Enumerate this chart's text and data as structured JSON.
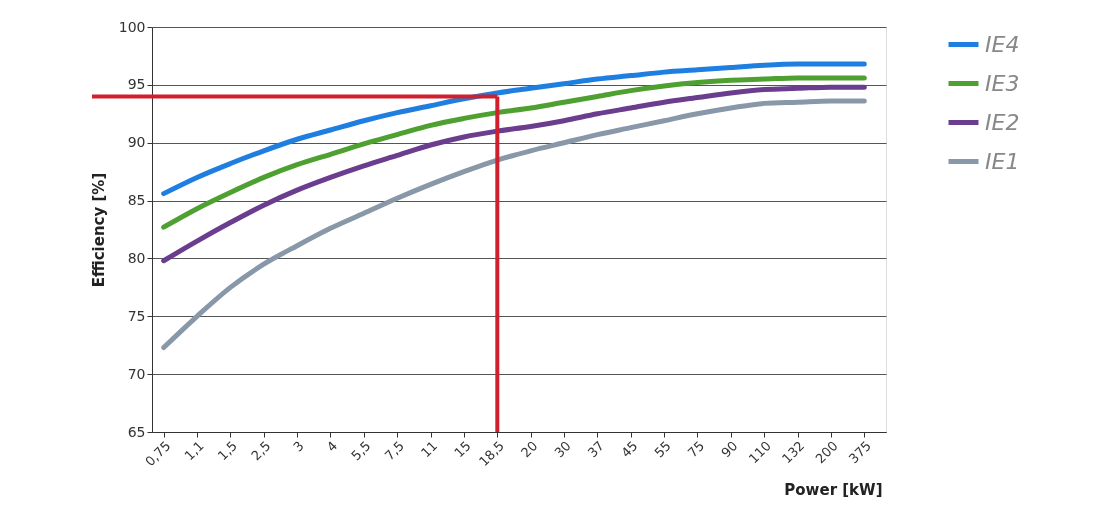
{
  "chart_data": {
    "type": "line",
    "xlabel": "Power  [kW]",
    "ylabel": "Efficiency  [%]",
    "categories": [
      "0,75",
      "1,1",
      "1,5",
      "2,5",
      "3",
      "4",
      "5,5",
      "7,5",
      "11",
      "15",
      "18,5",
      "20",
      "30",
      "37",
      "45",
      "55",
      "75",
      "90",
      "110",
      "132",
      "200",
      "375"
    ],
    "series": [
      {
        "name": "IE4",
        "color": "#1f7fe0",
        "values": [
          85.6,
          87.0,
          88.2,
          89.3,
          90.3,
          91.1,
          91.9,
          92.6,
          93.2,
          93.8,
          94.3,
          94.7,
          95.1,
          95.5,
          95.8,
          96.1,
          96.3,
          96.5,
          96.7,
          96.8,
          96.8,
          96.8
        ]
      },
      {
        "name": "IE3",
        "color": "#4ea030",
        "values": [
          82.7,
          84.3,
          85.7,
          87.0,
          88.1,
          89.0,
          89.9,
          90.7,
          91.5,
          92.1,
          92.6,
          93.0,
          93.5,
          94.0,
          94.5,
          94.9,
          95.2,
          95.4,
          95.5,
          95.6,
          95.6,
          95.6
        ]
      },
      {
        "name": "IE2",
        "color": "#6a3d8f",
        "values": [
          79.8,
          81.5,
          83.1,
          84.6,
          85.9,
          87.0,
          88.0,
          88.9,
          89.8,
          90.5,
          91.0,
          91.4,
          91.9,
          92.5,
          93.0,
          93.5,
          93.9,
          94.3,
          94.6,
          94.7,
          94.8,
          94.8
        ]
      },
      {
        "name": "IE1",
        "color": "#8898a8",
        "values": [
          72.3,
          75.0,
          77.5,
          79.5,
          81.1,
          82.6,
          83.9,
          85.2,
          86.4,
          87.5,
          88.5,
          89.3,
          90.0,
          90.7,
          91.3,
          91.9,
          92.5,
          93.0,
          93.4,
          93.5,
          93.6,
          93.6
        ]
      }
    ],
    "ylim": [
      65,
      100
    ],
    "yticks": [
      65,
      70,
      75,
      80,
      85,
      90,
      95,
      100
    ],
    "ref_lines": [
      {
        "axis": "y",
        "value": 94,
        "color": "#d0202e"
      },
      {
        "axis": "x",
        "value": "18,5",
        "color": "#d0202e"
      }
    ],
    "grid": "y",
    "legend": "top right",
    "marker": "none",
    "line_style": "solid"
  }
}
